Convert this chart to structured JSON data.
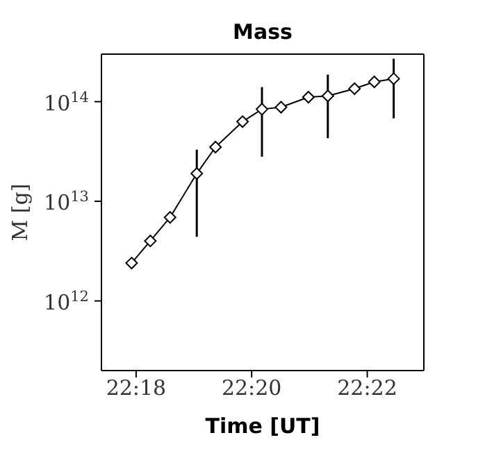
{
  "chart_data": {
    "type": "line",
    "title": "Mass",
    "xlabel": "Time [UT]",
    "ylabel": "M [g]",
    "x": [
      22.2987,
      22.3041,
      22.3098,
      22.3175,
      22.3229,
      22.3307,
      22.3363,
      22.3418,
      22.3497,
      22.3553,
      22.363,
      22.3687,
      22.3743
    ],
    "series": [
      {
        "color": "#000000",
        "values": [
          2400000000000.0,
          4000000000000.0,
          6900000000000.0,
          19000000000000.0,
          35000000000000.0,
          63000000000000.0,
          84000000000000.0,
          88000000000000.0,
          111000000000000.0,
          114000000000000.0,
          135000000000000.0,
          158000000000000.0,
          170000000000000.0
        ],
        "errors": [
          null,
          null,
          null,
          [
            4400000000000.0,
            33000000000000.0
          ],
          null,
          null,
          [
            28000000000000.0,
            140000000000000.0
          ],
          null,
          null,
          [
            43000000000000.0,
            187000000000000.0
          ],
          null,
          null,
          [
            68000000000000.0,
            270000000000000.0
          ]
        ]
      }
    ],
    "xlim": [
      22.29,
      22.383
    ],
    "xticks": [
      {
        "value": 22.3,
        "label": "22:18"
      },
      {
        "value": 22.33333,
        "label": "22:20"
      },
      {
        "value": 22.36667,
        "label": "22:22"
      }
    ],
    "ylim": [
      200000000000.0,
      300000000000000.0
    ],
    "yticks": [
      {
        "value": 1000000000000.0,
        "label": "10$^{12}$"
      },
      {
        "value": 10000000000000.0,
        "label": "10$^{13}$"
      },
      {
        "value": 100000000000000.0,
        "label": "10$^{14}$"
      }
    ],
    "log": "y",
    "marker": "diamond",
    "line_style": "solid"
  }
}
